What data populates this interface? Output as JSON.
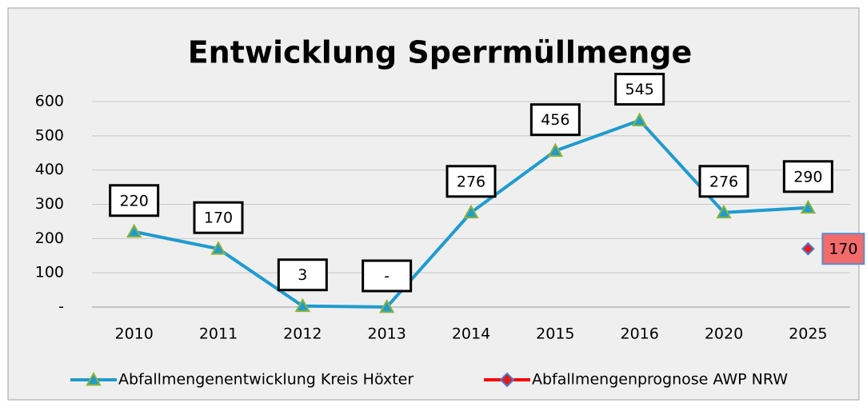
{
  "chart_data": {
    "type": "line",
    "title": "Entwicklung Sperrmüllmenge",
    "categories": [
      "2010",
      "2011",
      "2012",
      "2013",
      "2014",
      "2015",
      "2016",
      "2020",
      "2025"
    ],
    "series": [
      {
        "name": "Abfallmengenentwicklung Kreis Höxter",
        "color": "#1f9bcf",
        "marker_color": "#8db33a",
        "values": [
          220,
          170,
          3,
          0,
          276,
          456,
          545,
          276,
          290
        ],
        "value_labels": [
          "220",
          "170",
          "3",
          "-",
          "276",
          "456",
          "545",
          "276",
          "290"
        ]
      },
      {
        "name": "Abfallmengenprognose AWP NRW",
        "color": "#ff0000",
        "marker_color": "#e41a1a",
        "values": [
          null,
          null,
          null,
          null,
          null,
          null,
          null,
          null,
          170
        ],
        "value_labels": [
          null,
          null,
          null,
          null,
          null,
          null,
          null,
          null,
          "170"
        ]
      }
    ],
    "ylim": [
      0,
      600
    ],
    "yticks": [
      {
        "value": 0,
        "label": "-"
      },
      100,
      200,
      300,
      400,
      500,
      600
    ],
    "grid": true,
    "legend": "bottom"
  }
}
